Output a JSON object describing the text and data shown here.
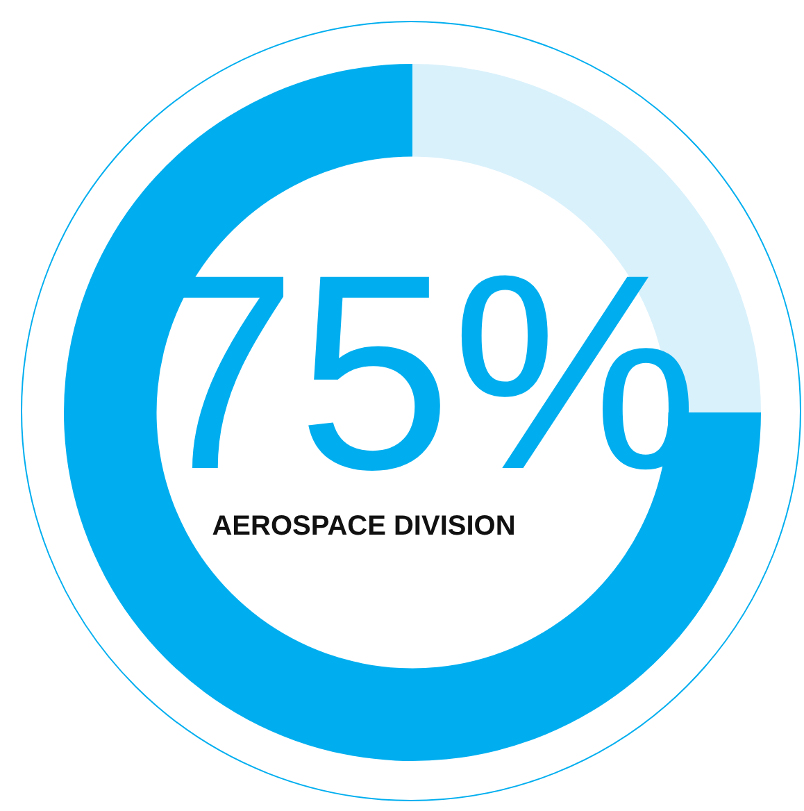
{
  "chart_data": {
    "type": "donut",
    "categories": [
      null,
      null
    ],
    "values": [
      75,
      25
    ],
    "colors": [
      "#00aeef",
      "#d9f1fb"
    ],
    "value_labels": [
      "75%",
      null
    ],
    "annotations": [
      "AEROSPACE DIVISION"
    ]
  }
}
